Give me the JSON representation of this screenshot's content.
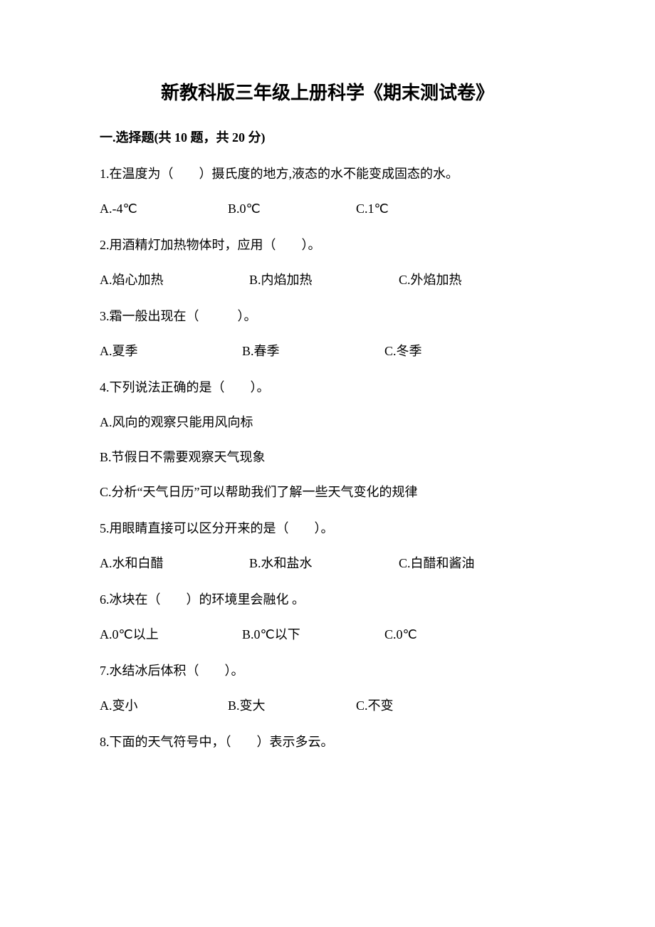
{
  "title": "新教科版三年级上册科学《期末测试卷》",
  "section": {
    "number": "一.",
    "name": "选择题",
    "meta": "(共 10 题，共 20 分)"
  },
  "questions": [
    {
      "num": "1.",
      "text": "在温度为（　　）摄氏度的地方,液态的水不能变成固态的水。",
      "layout": "row",
      "widths": [
        180,
        180,
        180
      ],
      "options": [
        {
          "label": "A.",
          "text": "-4℃"
        },
        {
          "label": "B.",
          "text": "0℃"
        },
        {
          "label": "C.",
          "text": "1℃"
        }
      ]
    },
    {
      "num": "2.",
      "text": "用酒精灯加热物体时，应用（　　）。",
      "layout": "row",
      "widths": [
        210,
        210,
        210
      ],
      "options": [
        {
          "label": "A.",
          "text": "焰心加热"
        },
        {
          "label": "B.",
          "text": "内焰加热"
        },
        {
          "label": "C.",
          "text": "外焰加热"
        }
      ]
    },
    {
      "num": "3.",
      "text": "霜一般出现在（　　　）。",
      "layout": "row",
      "widths": [
        200,
        200,
        200
      ],
      "options": [
        {
          "label": "A.",
          "text": "夏季"
        },
        {
          "label": "B.",
          "text": "春季"
        },
        {
          "label": "C.",
          "text": "冬季"
        }
      ]
    },
    {
      "num": "4.",
      "text": "下列说法正确的是（　　）。",
      "layout": "col",
      "options": [
        {
          "label": "A.",
          "text": "风向的观察只能用风向标"
        },
        {
          "label": "B.",
          "text": "节假日不需要观察天气现象"
        },
        {
          "label": "C.",
          "text": "分析“天气日历”可以帮助我们了解一些天气变化的规律"
        }
      ]
    },
    {
      "num": "5.",
      "text": "用眼睛直接可以区分开来的是（　　）。",
      "layout": "row",
      "widths": [
        210,
        210,
        210
      ],
      "options": [
        {
          "label": "A.",
          "text": "水和白醋"
        },
        {
          "label": "B.",
          "text": "水和盐水"
        },
        {
          "label": "C.",
          "text": "白醋和酱油"
        }
      ]
    },
    {
      "num": "6.",
      "text": "冰块在（　　）的环境里会融化 。",
      "layout": "row",
      "widths": [
        200,
        200,
        200
      ],
      "options": [
        {
          "label": "A.",
          "text": "0℃以上"
        },
        {
          "label": "B.",
          "text": "0℃以下"
        },
        {
          "label": "C.",
          "text": "0℃"
        }
      ]
    },
    {
      "num": "7.",
      "text": "水结冰后体积（　　）。",
      "layout": "row",
      "widths": [
        180,
        180,
        180
      ],
      "options": [
        {
          "label": "A.",
          "text": "变小"
        },
        {
          "label": "B.",
          "text": "变大"
        },
        {
          "label": "C.",
          "text": "不变"
        }
      ]
    },
    {
      "num": "8.",
      "text": "下面的天气符号中，（　　）表示多云。",
      "layout": "none",
      "options": []
    }
  ]
}
